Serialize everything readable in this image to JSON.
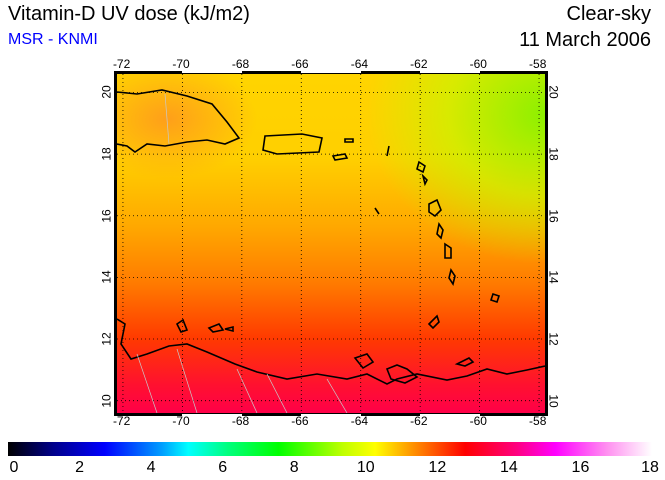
{
  "header": {
    "title": "Vitamin-D UV dose (kJ/m2)",
    "source": "MSR - KNMI",
    "condition": "Clear-sky",
    "date": "11 March 2006"
  },
  "map": {
    "lon_ticks": [
      "-72",
      "-70",
      "-68",
      "-66",
      "-64",
      "-62",
      "-60",
      "-58"
    ],
    "lat_ticks": [
      "20",
      "18",
      "16",
      "14",
      "12",
      "10"
    ],
    "lon_range": [
      -72.2,
      -57.8
    ],
    "lat_range": [
      9.6,
      20.6
    ]
  },
  "colorbar": {
    "ticks": [
      "0",
      "2",
      "4",
      "6",
      "8",
      "10",
      "12",
      "14",
      "16",
      "18"
    ],
    "range": [
      0,
      18
    ]
  }
}
